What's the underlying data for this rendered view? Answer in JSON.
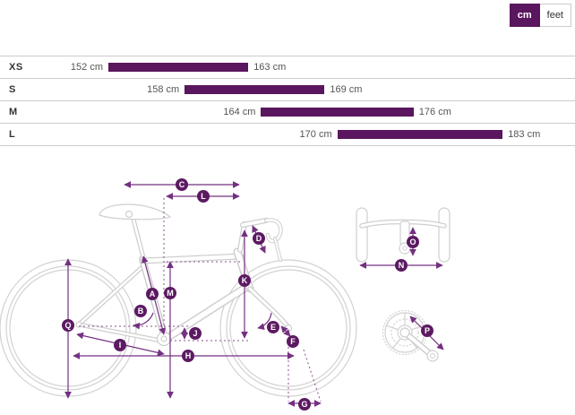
{
  "unit_toggle": {
    "options": [
      {
        "label": "cm",
        "selected": true
      },
      {
        "label": "feet",
        "selected": false
      }
    ]
  },
  "size_chart": {
    "type": "range-bar",
    "unit": "cm",
    "value_range": {
      "min": 152,
      "max": 183
    },
    "rows": [
      {
        "size": "XS",
        "min": 152,
        "max": 163,
        "min_label": "152 cm",
        "max_label": "163 cm"
      },
      {
        "size": "S",
        "min": 158,
        "max": 169,
        "min_label": "158 cm",
        "max_label": "169 cm"
      },
      {
        "size": "M",
        "min": 164,
        "max": 176,
        "min_label": "164 cm",
        "max_label": "176 cm"
      },
      {
        "size": "L",
        "min": 170,
        "max": 183,
        "min_label": "170 cm",
        "max_label": "183 cm"
      }
    ]
  },
  "diagram": {
    "markers": [
      {
        "letter": "A"
      },
      {
        "letter": "B"
      },
      {
        "letter": "C"
      },
      {
        "letter": "D"
      },
      {
        "letter": "E"
      },
      {
        "letter": "F"
      },
      {
        "letter": "G"
      },
      {
        "letter": "H"
      },
      {
        "letter": "I"
      },
      {
        "letter": "J"
      },
      {
        "letter": "K"
      },
      {
        "letter": "L"
      },
      {
        "letter": "M"
      },
      {
        "letter": "N"
      },
      {
        "letter": "O"
      },
      {
        "letter": "P"
      },
      {
        "letter": "Q"
      }
    ],
    "colors": {
      "accent": "#5a165e",
      "dimension_line": "#743081",
      "sketch": "#d2d2d2"
    }
  }
}
